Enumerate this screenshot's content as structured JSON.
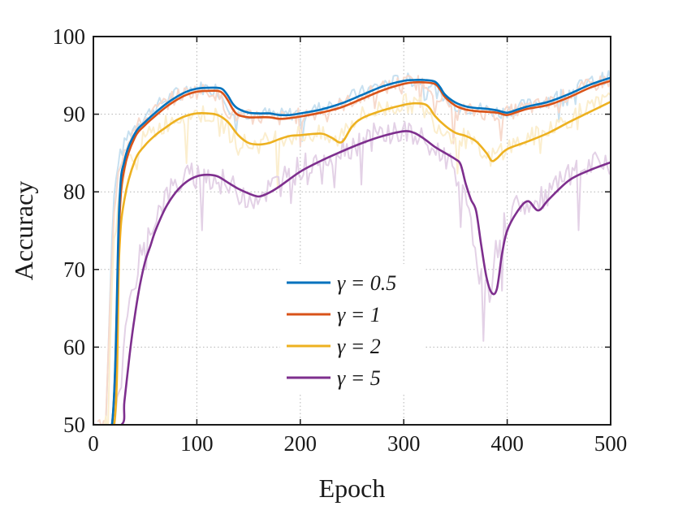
{
  "chart_data": {
    "type": "line",
    "title": "",
    "xlabel": "Epoch",
    "ylabel": "Accuracy",
    "xlim": [
      0,
      500
    ],
    "ylim": [
      50,
      100
    ],
    "xticks": [
      0,
      100,
      200,
      300,
      400,
      500
    ],
    "yticks": [
      50,
      60,
      70,
      80,
      90,
      100
    ],
    "grid": true,
    "legend_position": "center",
    "series": [
      {
        "name": "γ = 0.5",
        "color": "#0072BD",
        "x": [
          0,
          18,
          25,
          30,
          40,
          50,
          60,
          70,
          80,
          90,
          100,
          110,
          120,
          125,
          130,
          135,
          140,
          150,
          160,
          170,
          180,
          190,
          200,
          220,
          240,
          260,
          280,
          300,
          310,
          320,
          330,
          335,
          340,
          350,
          360,
          370,
          380,
          390,
          400,
          410,
          420,
          440,
          460,
          480,
          500
        ],
        "values": [
          50,
          50,
          78,
          84,
          87.5,
          89,
          90.2,
          91.3,
          92.2,
          92.9,
          93.3,
          93.4,
          93.4,
          93.2,
          92.4,
          91.3,
          90.7,
          90.2,
          90.1,
          90.1,
          89.9,
          89.9,
          90.1,
          90.6,
          91.4,
          92.5,
          93.6,
          94.3,
          94.4,
          94.4,
          94.2,
          93.5,
          92.5,
          91.5,
          91.0,
          90.8,
          90.7,
          90.5,
          90.2,
          90.6,
          91.0,
          91.6,
          92.6,
          93.8,
          94.7
        ]
      },
      {
        "name": "γ = 1",
        "color": "#D95319",
        "x": [
          0,
          18,
          25,
          30,
          40,
          50,
          60,
          70,
          80,
          90,
          100,
          110,
          120,
          125,
          130,
          135,
          140,
          150,
          160,
          170,
          180,
          190,
          200,
          220,
          240,
          260,
          280,
          300,
          310,
          320,
          330,
          335,
          340,
          350,
          360,
          370,
          380,
          390,
          400,
          410,
          420,
          440,
          460,
          480,
          500
        ],
        "values": [
          50,
          50,
          76,
          83,
          87,
          88.6,
          89.8,
          90.9,
          91.8,
          92.5,
          92.9,
          93.0,
          93.0,
          92.7,
          91.8,
          90.6,
          89.9,
          89.6,
          89.6,
          89.6,
          89.4,
          89.5,
          89.7,
          90.2,
          90.9,
          92.0,
          93.1,
          93.9,
          94.1,
          94.1,
          93.9,
          93.2,
          92.2,
          91.1,
          90.6,
          90.4,
          90.3,
          90.2,
          89.9,
          90.3,
          90.7,
          91.2,
          92.2,
          93.4,
          94.3
        ]
      },
      {
        "name": "γ = 2",
        "color": "#EDB120",
        "x": [
          0,
          20,
          25,
          30,
          40,
          50,
          60,
          70,
          80,
          90,
          100,
          110,
          120,
          130,
          140,
          150,
          160,
          170,
          180,
          190,
          200,
          220,
          230,
          240,
          250,
          260,
          280,
          300,
          310,
          320,
          325,
          330,
          340,
          350,
          360,
          370,
          380,
          385,
          390,
          400,
          420,
          440,
          460,
          480,
          500
        ],
        "values": [
          50,
          50,
          72,
          79,
          84,
          86,
          87.3,
          88.3,
          89.2,
          89.8,
          90.1,
          90.1,
          89.9,
          89.0,
          87.3,
          86.3,
          86.1,
          86.3,
          86.8,
          87.2,
          87.3,
          87.5,
          87.0,
          86.4,
          88.4,
          89.5,
          90.5,
          91.2,
          91.4,
          91.3,
          90.8,
          89.8,
          88.5,
          87.6,
          87.2,
          86.5,
          85.0,
          84.0,
          84.3,
          85.5,
          86.5,
          87.6,
          89.0,
          90.3,
          91.6
        ]
      },
      {
        "name": "γ = 5",
        "color": "#7E2F8E",
        "x": [
          0,
          27,
          30,
          35,
          40,
          45,
          50,
          55,
          60,
          70,
          80,
          90,
          100,
          110,
          120,
          130,
          140,
          150,
          160,
          170,
          180,
          200,
          220,
          240,
          260,
          280,
          300,
          310,
          320,
          330,
          340,
          350,
          355,
          360,
          365,
          370,
          375,
          380,
          385,
          390,
          395,
          400,
          410,
          420,
          430,
          440,
          460,
          480,
          500
        ],
        "values": [
          50,
          50,
          53,
          59,
          64,
          68,
          71,
          73,
          75,
          78,
          80,
          81.3,
          82.0,
          82.2,
          82.0,
          81.2,
          80.4,
          79.8,
          79.4,
          79.9,
          80.7,
          82.6,
          84.0,
          85.2,
          86.3,
          87.2,
          87.8,
          87.6,
          86.8,
          85.8,
          85.0,
          84.2,
          83.5,
          81.0,
          79.0,
          77.5,
          73.0,
          69.0,
          67.0,
          67.5,
          72.0,
          75.0,
          77.5,
          78.8,
          77.6,
          79.0,
          81.5,
          82.8,
          83.8
        ]
      }
    ]
  }
}
